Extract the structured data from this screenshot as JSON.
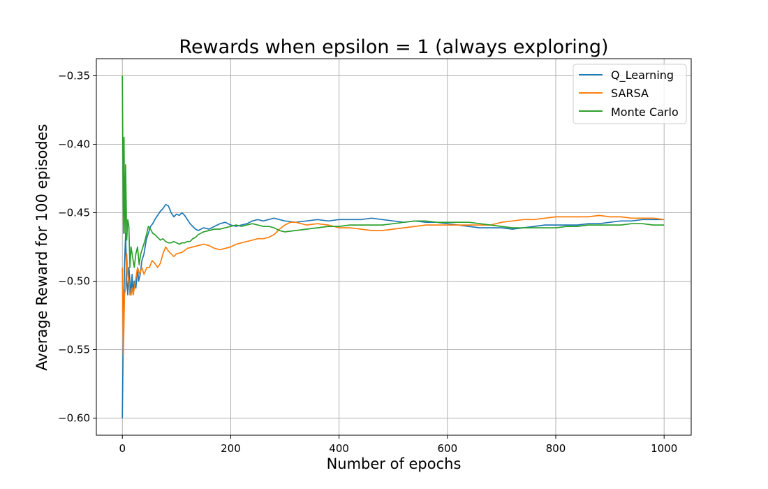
{
  "chart_data": {
    "type": "line",
    "title": "Rewards when epsilon = 1 (always exploring)",
    "xlabel": "Number of epochs",
    "ylabel": "Average Reward for 100 episodes",
    "xlim": [
      -48,
      1050
    ],
    "ylim": [
      -0.6125,
      -0.3375
    ],
    "xticks": [
      0,
      200,
      400,
      600,
      800,
      1000
    ],
    "yticks": [
      -0.6,
      -0.55,
      -0.5,
      -0.45,
      -0.4,
      -0.35
    ],
    "xtick_labels": [
      "0",
      "200",
      "400",
      "600",
      "800",
      "1000"
    ],
    "ytick_labels": [
      "−0.60",
      "−0.55",
      "−0.50",
      "−0.45",
      "−0.40",
      "−0.35"
    ],
    "grid": true,
    "legend_position": "top-right",
    "series": [
      {
        "name": "Q_Learning",
        "color": "#1f77b4",
        "points": [
          [
            0,
            -0.6
          ],
          [
            2,
            -0.53
          ],
          [
            4,
            -0.49
          ],
          [
            6,
            -0.465
          ],
          [
            8,
            -0.5
          ],
          [
            10,
            -0.51
          ],
          [
            12,
            -0.49
          ],
          [
            14,
            -0.5
          ],
          [
            16,
            -0.51
          ],
          [
            18,
            -0.495
          ],
          [
            20,
            -0.51
          ],
          [
            22,
            -0.5
          ],
          [
            25,
            -0.505
          ],
          [
            28,
            -0.49
          ],
          [
            30,
            -0.5
          ],
          [
            33,
            -0.495
          ],
          [
            36,
            -0.485
          ],
          [
            40,
            -0.48
          ],
          [
            44,
            -0.47
          ],
          [
            48,
            -0.465
          ],
          [
            52,
            -0.46
          ],
          [
            56,
            -0.458
          ],
          [
            60,
            -0.455
          ],
          [
            65,
            -0.452
          ],
          [
            70,
            -0.449
          ],
          [
            75,
            -0.447
          ],
          [
            80,
            -0.444
          ],
          [
            85,
            -0.445
          ],
          [
            90,
            -0.45
          ],
          [
            95,
            -0.453
          ],
          [
            100,
            -0.451
          ],
          [
            105,
            -0.452
          ],
          [
            110,
            -0.45
          ],
          [
            115,
            -0.452
          ],
          [
            120,
            -0.455
          ],
          [
            125,
            -0.458
          ],
          [
            130,
            -0.46
          ],
          [
            135,
            -0.462
          ],
          [
            140,
            -0.463
          ],
          [
            145,
            -0.462
          ],
          [
            150,
            -0.461
          ],
          [
            160,
            -0.462
          ],
          [
            170,
            -0.46
          ],
          [
            180,
            -0.458
          ],
          [
            190,
            -0.457
          ],
          [
            200,
            -0.459
          ],
          [
            210,
            -0.46
          ],
          [
            220,
            -0.459
          ],
          [
            230,
            -0.458
          ],
          [
            240,
            -0.456
          ],
          [
            250,
            -0.455
          ],
          [
            260,
            -0.456
          ],
          [
            270,
            -0.455
          ],
          [
            280,
            -0.454
          ],
          [
            290,
            -0.455
          ],
          [
            300,
            -0.456
          ],
          [
            320,
            -0.457
          ],
          [
            340,
            -0.456
          ],
          [
            360,
            -0.455
          ],
          [
            380,
            -0.456
          ],
          [
            400,
            -0.455
          ],
          [
            420,
            -0.455
          ],
          [
            440,
            -0.455
          ],
          [
            460,
            -0.454
          ],
          [
            480,
            -0.455
          ],
          [
            500,
            -0.456
          ],
          [
            520,
            -0.457
          ],
          [
            540,
            -0.456
          ],
          [
            560,
            -0.457
          ],
          [
            580,
            -0.457
          ],
          [
            600,
            -0.458
          ],
          [
            620,
            -0.459
          ],
          [
            640,
            -0.46
          ],
          [
            660,
            -0.461
          ],
          [
            680,
            -0.461
          ],
          [
            700,
            -0.461
          ],
          [
            720,
            -0.462
          ],
          [
            740,
            -0.461
          ],
          [
            760,
            -0.46
          ],
          [
            780,
            -0.459
          ],
          [
            800,
            -0.459
          ],
          [
            820,
            -0.459
          ],
          [
            840,
            -0.459
          ],
          [
            860,
            -0.458
          ],
          [
            880,
            -0.458
          ],
          [
            900,
            -0.457
          ],
          [
            920,
            -0.456
          ],
          [
            940,
            -0.456
          ],
          [
            960,
            -0.455
          ],
          [
            980,
            -0.455
          ],
          [
            1000,
            -0.455
          ]
        ]
      },
      {
        "name": "SARSA",
        "color": "#ff7f0e",
        "points": [
          [
            0,
            -0.49
          ],
          [
            2,
            -0.555
          ],
          [
            4,
            -0.51
          ],
          [
            6,
            -0.505
          ],
          [
            8,
            -0.48
          ],
          [
            10,
            -0.495
          ],
          [
            12,
            -0.5
          ],
          [
            14,
            -0.51
          ],
          [
            16,
            -0.51
          ],
          [
            18,
            -0.505
          ],
          [
            20,
            -0.51
          ],
          [
            24,
            -0.5
          ],
          [
            28,
            -0.49
          ],
          [
            32,
            -0.495
          ],
          [
            36,
            -0.49
          ],
          [
            40,
            -0.495
          ],
          [
            45,
            -0.49
          ],
          [
            50,
            -0.49
          ],
          [
            55,
            -0.485
          ],
          [
            60,
            -0.487
          ],
          [
            65,
            -0.49
          ],
          [
            70,
            -0.487
          ],
          [
            75,
            -0.48
          ],
          [
            80,
            -0.475
          ],
          [
            85,
            -0.478
          ],
          [
            90,
            -0.48
          ],
          [
            95,
            -0.482
          ],
          [
            100,
            -0.48
          ],
          [
            110,
            -0.479
          ],
          [
            120,
            -0.476
          ],
          [
            130,
            -0.475
          ],
          [
            140,
            -0.474
          ],
          [
            150,
            -0.473
          ],
          [
            160,
            -0.474
          ],
          [
            170,
            -0.476
          ],
          [
            180,
            -0.477
          ],
          [
            190,
            -0.476
          ],
          [
            200,
            -0.475
          ],
          [
            210,
            -0.473
          ],
          [
            220,
            -0.472
          ],
          [
            230,
            -0.471
          ],
          [
            240,
            -0.47
          ],
          [
            250,
            -0.469
          ],
          [
            260,
            -0.469
          ],
          [
            270,
            -0.468
          ],
          [
            280,
            -0.466
          ],
          [
            290,
            -0.462
          ],
          [
            300,
            -0.459
          ],
          [
            310,
            -0.457
          ],
          [
            320,
            -0.457
          ],
          [
            340,
            -0.459
          ],
          [
            360,
            -0.458
          ],
          [
            380,
            -0.459
          ],
          [
            400,
            -0.461
          ],
          [
            420,
            -0.461
          ],
          [
            440,
            -0.462
          ],
          [
            460,
            -0.463
          ],
          [
            480,
            -0.463
          ],
          [
            500,
            -0.462
          ],
          [
            520,
            -0.461
          ],
          [
            540,
            -0.46
          ],
          [
            560,
            -0.459
          ],
          [
            580,
            -0.459
          ],
          [
            600,
            -0.459
          ],
          [
            620,
            -0.459
          ],
          [
            640,
            -0.459
          ],
          [
            660,
            -0.459
          ],
          [
            680,
            -0.459
          ],
          [
            700,
            -0.457
          ],
          [
            720,
            -0.456
          ],
          [
            740,
            -0.455
          ],
          [
            760,
            -0.455
          ],
          [
            780,
            -0.454
          ],
          [
            800,
            -0.453
          ],
          [
            820,
            -0.453
          ],
          [
            840,
            -0.453
          ],
          [
            860,
            -0.453
          ],
          [
            880,
            -0.452
          ],
          [
            900,
            -0.453
          ],
          [
            920,
            -0.453
          ],
          [
            940,
            -0.454
          ],
          [
            960,
            -0.454
          ],
          [
            980,
            -0.454
          ],
          [
            1000,
            -0.455
          ]
        ]
      },
      {
        "name": "Monte Carlo",
        "color": "#2ca02c",
        "points": [
          [
            0,
            -0.35
          ],
          [
            2,
            -0.465
          ],
          [
            3,
            -0.395
          ],
          [
            4,
            -0.44
          ],
          [
            5,
            -0.465
          ],
          [
            6,
            -0.415
          ],
          [
            8,
            -0.47
          ],
          [
            10,
            -0.455
          ],
          [
            12,
            -0.46
          ],
          [
            14,
            -0.49
          ],
          [
            16,
            -0.475
          ],
          [
            18,
            -0.48
          ],
          [
            20,
            -0.485
          ],
          [
            22,
            -0.49
          ],
          [
            25,
            -0.48
          ],
          [
            28,
            -0.475
          ],
          [
            31,
            -0.488
          ],
          [
            34,
            -0.48
          ],
          [
            38,
            -0.475
          ],
          [
            42,
            -0.47
          ],
          [
            45,
            -0.465
          ],
          [
            48,
            -0.46
          ],
          [
            52,
            -0.462
          ],
          [
            56,
            -0.465
          ],
          [
            60,
            -0.466
          ],
          [
            65,
            -0.468
          ],
          [
            70,
            -0.47
          ],
          [
            75,
            -0.469
          ],
          [
            80,
            -0.471
          ],
          [
            85,
            -0.472
          ],
          [
            90,
            -0.472
          ],
          [
            95,
            -0.471
          ],
          [
            100,
            -0.472
          ],
          [
            105,
            -0.473
          ],
          [
            110,
            -0.472
          ],
          [
            115,
            -0.472
          ],
          [
            120,
            -0.471
          ],
          [
            125,
            -0.471
          ],
          [
            130,
            -0.469
          ],
          [
            135,
            -0.468
          ],
          [
            140,
            -0.466
          ],
          [
            150,
            -0.464
          ],
          [
            160,
            -0.463
          ],
          [
            170,
            -0.462
          ],
          [
            180,
            -0.462
          ],
          [
            190,
            -0.461
          ],
          [
            200,
            -0.46
          ],
          [
            210,
            -0.459
          ],
          [
            220,
            -0.46
          ],
          [
            230,
            -0.459
          ],
          [
            240,
            -0.458
          ],
          [
            250,
            -0.459
          ],
          [
            260,
            -0.46
          ],
          [
            270,
            -0.46
          ],
          [
            280,
            -0.461
          ],
          [
            290,
            -0.463
          ],
          [
            300,
            -0.464
          ],
          [
            320,
            -0.463
          ],
          [
            340,
            -0.462
          ],
          [
            360,
            -0.461
          ],
          [
            380,
            -0.46
          ],
          [
            400,
            -0.46
          ],
          [
            420,
            -0.459
          ],
          [
            440,
            -0.459
          ],
          [
            460,
            -0.459
          ],
          [
            480,
            -0.459
          ],
          [
            500,
            -0.458
          ],
          [
            520,
            -0.457
          ],
          [
            540,
            -0.456
          ],
          [
            560,
            -0.456
          ],
          [
            580,
            -0.457
          ],
          [
            600,
            -0.457
          ],
          [
            620,
            -0.457
          ],
          [
            640,
            -0.457
          ],
          [
            660,
            -0.458
          ],
          [
            680,
            -0.459
          ],
          [
            700,
            -0.46
          ],
          [
            720,
            -0.461
          ],
          [
            740,
            -0.461
          ],
          [
            760,
            -0.461
          ],
          [
            780,
            -0.461
          ],
          [
            800,
            -0.461
          ],
          [
            820,
            -0.46
          ],
          [
            840,
            -0.46
          ],
          [
            860,
            -0.459
          ],
          [
            880,
            -0.459
          ],
          [
            900,
            -0.459
          ],
          [
            920,
            -0.459
          ],
          [
            940,
            -0.458
          ],
          [
            960,
            -0.458
          ],
          [
            980,
            -0.459
          ],
          [
            1000,
            -0.459
          ]
        ]
      }
    ]
  }
}
